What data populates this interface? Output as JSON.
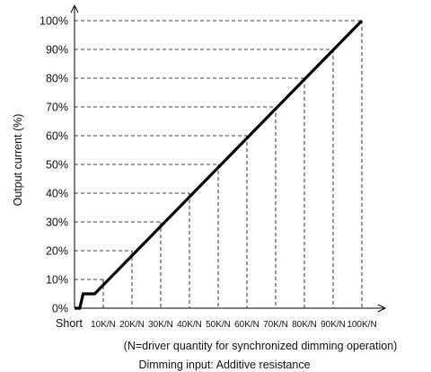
{
  "chart_data": {
    "type": "line",
    "xlabel": "Dimming input: Additive resistance",
    "note": "(N=driver quantity for synchronized dimming operation)",
    "ylabel": "Output current (%)",
    "x_ticks": [
      "Short",
      "10K/N",
      "20K/N",
      "30K/N",
      "40K/N",
      "50K/N",
      "60K/N",
      "70K/N",
      "80K/N",
      "90K/N",
      "100K/N"
    ],
    "y_ticks": [
      "0%",
      "10%",
      "20%",
      "30%",
      "40%",
      "50%",
      "60%",
      "70%",
      "80%",
      "90%",
      "100%"
    ],
    "xlim": [
      0,
      100
    ],
    "ylim": [
      0,
      100
    ],
    "grid": "dashed drop lines to each tick",
    "series": [
      {
        "x": [
          0,
          1.8,
          3,
          7,
          100
        ],
        "y": [
          0,
          0,
          5,
          5,
          100
        ]
      }
    ],
    "line_color": "#000000"
  }
}
